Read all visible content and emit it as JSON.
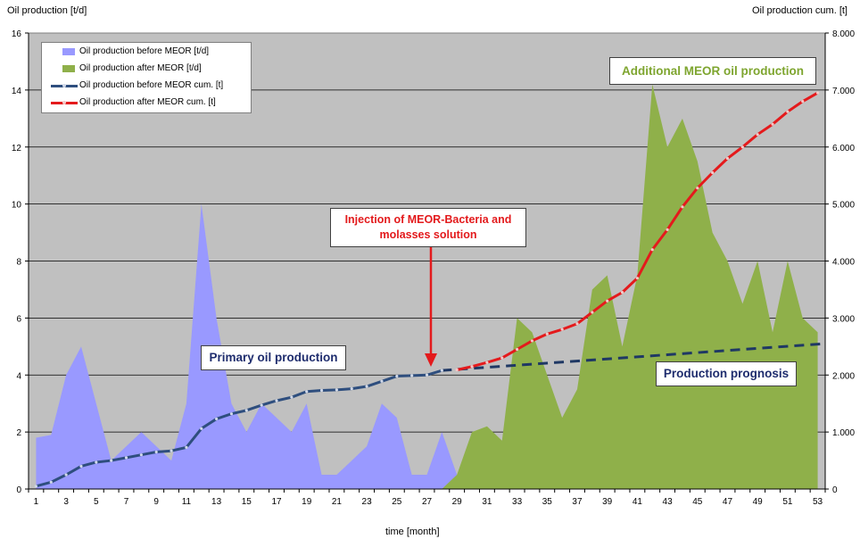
{
  "chart_data": {
    "type": "area",
    "y_left_title": "Oil production  [t/d]",
    "y_right_title": "Oil production cum. [t]",
    "x_title": "time [month]",
    "x_ticks": [
      "1",
      "3",
      "5",
      "7",
      "9",
      "11",
      "13",
      "15",
      "17",
      "19",
      "21",
      "23",
      "25",
      "27",
      "29",
      "31",
      "33",
      "35",
      "37",
      "39",
      "41",
      "43",
      "45",
      "47",
      "49",
      "51",
      "53"
    ],
    "y_left_ticks": [
      "0",
      "2",
      "4",
      "6",
      "8",
      "10",
      "12",
      "14",
      "16"
    ],
    "y_right_ticks": [
      "0",
      "1.000",
      "2.000",
      "3.000",
      "4.000",
      "5.000",
      "6.000",
      "7.000",
      "8.000"
    ],
    "ylim_left": [
      0,
      16
    ],
    "ylim_right": [
      0,
      8000
    ],
    "xlim": [
      1,
      53
    ],
    "grid": true,
    "legend_position": "top-left",
    "colors": {
      "plot_background": "#c0c0c0",
      "before": "#9999ff",
      "after": "#8fb04a",
      "cum_before": "#2e4e7e",
      "cum_after": "#e41a1c",
      "prognosis": "#1f3864",
      "annotation_red": "#e31a1c",
      "annotation_green": "#7ea52f",
      "annotation_navy": "#1f2d6e"
    },
    "series": [
      {
        "name": "Oil production before MEOR  [t/d]",
        "kind": "area",
        "x": [
          1,
          2,
          3,
          4,
          5,
          6,
          7,
          8,
          9,
          10,
          11,
          12,
          13,
          14,
          15,
          16,
          17,
          18,
          19,
          20,
          21,
          22,
          23,
          24,
          25,
          26,
          27,
          28,
          29
        ],
        "values": [
          1.8,
          1.9,
          4.0,
          5.0,
          3.0,
          1.0,
          1.5,
          2.0,
          1.5,
          1.0,
          3.0,
          10.0,
          6.0,
          3.0,
          2.0,
          3.0,
          2.5,
          2.0,
          3.0,
          0.5,
          0.5,
          1.0,
          1.5,
          3.0,
          2.5,
          0.5,
          0.5,
          2.0,
          0.5
        ]
      },
      {
        "name": "Oil production after MEOR  [t/d]",
        "kind": "area",
        "x": [
          28,
          29,
          30,
          31,
          32,
          33,
          34,
          35,
          36,
          37,
          38,
          39,
          40,
          41,
          42,
          43,
          44,
          45,
          46,
          47,
          48,
          49,
          50,
          51,
          52,
          53
        ],
        "values": [
          0,
          0.5,
          2.0,
          2.2,
          1.7,
          6.0,
          5.5,
          4.0,
          2.5,
          3.5,
          7.0,
          7.5,
          5.0,
          7.5,
          14.2,
          12.0,
          13.0,
          11.5,
          9.0,
          8.0,
          6.5,
          8.0,
          5.5,
          8.0,
          6.0,
          5.5
        ]
      },
      {
        "name": "Oil production before MEOR cum. [t]",
        "kind": "line",
        "axis": "right",
        "x": [
          1,
          2,
          3,
          4,
          5,
          6,
          7,
          8,
          9,
          10,
          11,
          12,
          13,
          14,
          15,
          16,
          17,
          18,
          19,
          20,
          21,
          22,
          23,
          24,
          25,
          26,
          27,
          28
        ],
        "values": [
          50,
          120,
          250,
          400,
          470,
          500,
          550,
          600,
          650,
          670,
          730,
          1060,
          1230,
          1320,
          1380,
          1470,
          1550,
          1610,
          1710,
          1730,
          1740,
          1760,
          1800,
          1890,
          1980,
          1990,
          2000,
          2080
        ]
      },
      {
        "name": "Oil production after MEOR cum. [t]",
        "kind": "line",
        "axis": "right",
        "x": [
          29,
          30,
          31,
          32,
          33,
          34,
          35,
          36,
          37,
          38,
          39,
          40,
          41,
          42,
          43,
          44,
          45,
          46,
          47,
          48,
          49,
          50,
          51,
          52,
          53
        ],
        "values": [
          2090,
          2150,
          2220,
          2300,
          2450,
          2600,
          2720,
          2800,
          2900,
          3100,
          3300,
          3450,
          3700,
          4200,
          4550,
          4950,
          5280,
          5550,
          5800,
          6000,
          6220,
          6400,
          6620,
          6800,
          6950
        ]
      },
      {
        "kind": "dashed-line",
        "axis": "right",
        "x": [
          28,
          54
        ],
        "values": [
          2080,
          2550
        ]
      }
    ],
    "annotations": {
      "injection": "Injection of MEOR-Bacteria and molasses solution",
      "injection_line1": "Injection of MEOR-Bacteria and",
      "injection_line2": "molasses solution",
      "primary": "Primary oil production",
      "additional": "Additional MEOR oil production",
      "prognosis": "Production prognosis"
    }
  }
}
